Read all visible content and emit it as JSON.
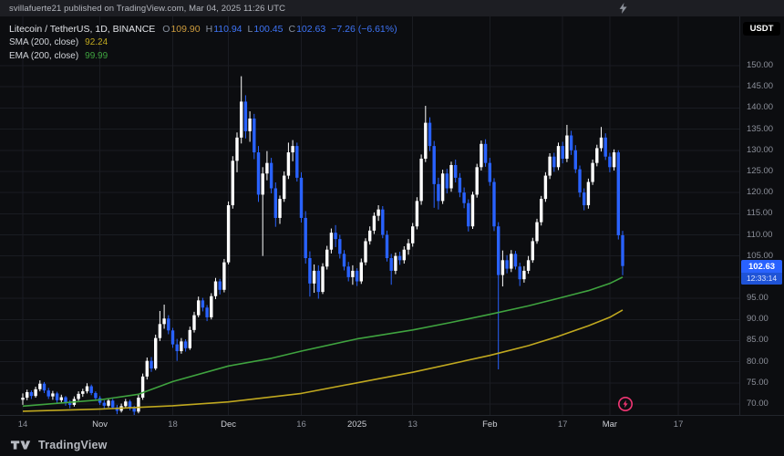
{
  "topbar": {
    "text": "svillafuerte21 published on TradingView.com, Mar 04, 2025 11:26 UTC"
  },
  "legend": {
    "symbol": "Litecoin / TetherUS, 1D, BINANCE",
    "ohlc": [
      {
        "label": "O",
        "value": "109.90",
        "color": "#cc9b3d"
      },
      {
        "label": "H",
        "value": "110.94",
        "color": "#3e74f5"
      },
      {
        "label": "L",
        "value": "100.45",
        "color": "#3e74f5"
      },
      {
        "label": "C",
        "value": "102.63",
        "color": "#3e74f5"
      }
    ],
    "change": "−7.26 (−6.61%)",
    "change_color": "#3e74f5",
    "indicators": [
      {
        "name": "SMA (200, close)",
        "value": "92.24",
        "color": "#c0a81f"
      },
      {
        "name": "EMA (200, close)",
        "value": "99.99",
        "color": "#3fa33f"
      }
    ]
  },
  "price_scale": {
    "currency_label": "USDT",
    "last_price": "102.63",
    "countdown": "12:33:14",
    "badge_color": "#2962ff"
  },
  "footer": {
    "logo_text": "TradingView"
  },
  "chart_data": {
    "type": "candlestick",
    "title": "Litecoin / TetherUS, 1D, BINANCE",
    "symbol": "LTC/USDT",
    "interval": "1D",
    "exchange": "BINANCE",
    "current_bar": {
      "open": 109.9,
      "high": 110.94,
      "low": 100.45,
      "close": 102.63,
      "change": -7.26,
      "change_pct": -6.61
    },
    "up_color": "#ffffff",
    "down_color": "#2962ff",
    "grid": true,
    "ylim": [
      66.5,
      155
    ],
    "y_ticks": [
      "150.00",
      "145.00",
      "140.00",
      "135.00",
      "130.00",
      "125.00",
      "120.00",
      "115.00",
      "110.00",
      "105.00",
      "100.00",
      "95.00",
      "90.00",
      "85.00",
      "80.00",
      "75.00",
      "70.00"
    ],
    "x_labels": [
      {
        "text": "14",
        "i": 0,
        "major": false
      },
      {
        "text": "Nov",
        "i": 18,
        "major": true
      },
      {
        "text": "18",
        "i": 35,
        "major": false
      },
      {
        "text": "Dec",
        "i": 48,
        "major": true
      },
      {
        "text": "16",
        "i": 65,
        "major": false
      },
      {
        "text": "2025",
        "i": 78,
        "major": true
      },
      {
        "text": "13",
        "i": 91,
        "major": false
      },
      {
        "text": "Feb",
        "i": 109,
        "major": true
      },
      {
        "text": "17",
        "i": 126,
        "major": false
      },
      {
        "text": "Mar",
        "i": 137,
        "major": true
      },
      {
        "text": "17",
        "i": 153,
        "major": false
      }
    ],
    "candles": [
      [
        71.0,
        72.5,
        69.8,
        71.5
      ],
      [
        71.5,
        73.4,
        70.9,
        72.8
      ],
      [
        72.8,
        73.2,
        71.2,
        71.9
      ],
      [
        71.9,
        74.1,
        71.5,
        73.5
      ],
      [
        73.5,
        75.6,
        73.0,
        74.8
      ],
      [
        74.8,
        75.2,
        72.6,
        73.2
      ],
      [
        73.2,
        73.8,
        71.2,
        71.8
      ],
      [
        71.8,
        73.1,
        71.0,
        72.5
      ],
      [
        72.5,
        72.9,
        70.3,
        70.9
      ],
      [
        70.9,
        72.2,
        70.4,
        71.6
      ],
      [
        71.6,
        71.9,
        69.6,
        70.2
      ],
      [
        70.2,
        70.9,
        69.0,
        69.8
      ],
      [
        69.8,
        71.8,
        69.4,
        71.2
      ],
      [
        71.2,
        73.0,
        70.8,
        72.4
      ],
      [
        72.4,
        73.6,
        71.7,
        73.0
      ],
      [
        73.0,
        74.9,
        72.5,
        74.2
      ],
      [
        74.2,
        74.6,
        72.1,
        72.6
      ],
      [
        72.6,
        73.0,
        70.9,
        71.4
      ],
      [
        71.4,
        71.9,
        69.8,
        70.3
      ],
      [
        70.3,
        70.9,
        69.0,
        69.6
      ],
      [
        69.6,
        71.4,
        69.2,
        70.8
      ],
      [
        70.8,
        71.2,
        68.8,
        69.2
      ],
      [
        69.2,
        69.8,
        67.6,
        68.4
      ],
      [
        68.4,
        70.1,
        68.0,
        69.5
      ],
      [
        69.5,
        71.2,
        69.1,
        70.6
      ],
      [
        70.6,
        71.0,
        68.5,
        69.0
      ],
      [
        69.0,
        69.6,
        66.4,
        68.2
      ],
      [
        68.2,
        72.3,
        67.8,
        71.5
      ],
      [
        71.5,
        77.2,
        71.0,
        76.5
      ],
      [
        76.5,
        81.0,
        75.8,
        80.2
      ],
      [
        80.2,
        81.1,
        77.6,
        78.4
      ],
      [
        78.4,
        86.4,
        78.0,
        85.6
      ],
      [
        85.6,
        92.0,
        84.9,
        88.9
      ],
      [
        88.9,
        93.5,
        87.8,
        90.2
      ],
      [
        90.2,
        91.0,
        86.5,
        87.4
      ],
      [
        87.4,
        88.0,
        83.3,
        84.1
      ],
      [
        84.1,
        85.4,
        80.2,
        82.5
      ],
      [
        82.5,
        85.6,
        81.9,
        84.8
      ],
      [
        84.8,
        85.3,
        82.4,
        83.2
      ],
      [
        83.2,
        88.3,
        82.8,
        87.5
      ],
      [
        87.5,
        91.8,
        86.9,
        91.0
      ],
      [
        91.0,
        95.4,
        90.5,
        94.5
      ],
      [
        94.5,
        95.1,
        91.9,
        92.8
      ],
      [
        92.8,
        93.4,
        89.6,
        90.5
      ],
      [
        90.5,
        96.2,
        90.0,
        95.5
      ],
      [
        95.5,
        99.8,
        94.8,
        99.0
      ],
      [
        99.0,
        99.6,
        95.9,
        97.0
      ],
      [
        97.0,
        104.3,
        96.4,
        103.5
      ],
      [
        103.5,
        117.9,
        103.0,
        117.0
      ],
      [
        117.0,
        128.6,
        116.2,
        127.5
      ],
      [
        127.5,
        134.2,
        124.8,
        133.0
      ],
      [
        133.0,
        147.5,
        131.6,
        141.5
      ],
      [
        141.5,
        143.0,
        132.8,
        134.5
      ],
      [
        134.5,
        139.2,
        132.0,
        137.5
      ],
      [
        137.5,
        138.6,
        127.9,
        129.5
      ],
      [
        129.5,
        131.0,
        117.8,
        119.5
      ],
      [
        119.5,
        126.0,
        105.0,
        124.5
      ],
      [
        124.5,
        129.8,
        122.9,
        127.0
      ],
      [
        127.0,
        128.2,
        119.8,
        121.0
      ],
      [
        121.0,
        122.4,
        111.9,
        114.0
      ],
      [
        114.0,
        119.3,
        112.6,
        118.5
      ],
      [
        118.5,
        125.0,
        117.8,
        124.0
      ],
      [
        124.0,
        131.8,
        123.2,
        129.5
      ],
      [
        129.5,
        132.4,
        127.4,
        131.0
      ],
      [
        131.0,
        131.8,
        122.6,
        123.5
      ],
      [
        123.5,
        124.8,
        112.9,
        114.0
      ],
      [
        114.0,
        115.6,
        103.2,
        104.5
      ],
      [
        104.5,
        106.1,
        95.4,
        98.5
      ],
      [
        98.5,
        103.0,
        96.3,
        101.5
      ],
      [
        101.5,
        102.8,
        94.9,
        96.5
      ],
      [
        96.5,
        103.3,
        96.0,
        102.5
      ],
      [
        102.5,
        107.4,
        101.8,
        106.5
      ],
      [
        106.5,
        111.5,
        105.6,
        110.5
      ],
      [
        110.5,
        112.3,
        107.1,
        109.0
      ],
      [
        109.0,
        110.0,
        104.4,
        105.5
      ],
      [
        105.5,
        106.4,
        101.6,
        102.5
      ],
      [
        102.5,
        103.6,
        99.0,
        100.0
      ],
      [
        100.0,
        102.8,
        98.2,
        101.5
      ],
      [
        101.5,
        102.1,
        97.9,
        99.0
      ],
      [
        99.0,
        104.4,
        98.4,
        103.5
      ],
      [
        103.5,
        109.2,
        102.8,
        108.5
      ],
      [
        108.5,
        112.0,
        107.7,
        111.0
      ],
      [
        111.0,
        115.3,
        110.2,
        114.5
      ],
      [
        114.5,
        117.0,
        113.3,
        116.0
      ],
      [
        116.0,
        116.8,
        109.2,
        110.0
      ],
      [
        110.0,
        111.0,
        103.7,
        104.5
      ],
      [
        104.5,
        105.5,
        98.2,
        101.5
      ],
      [
        101.5,
        105.8,
        100.7,
        105.0
      ],
      [
        105.0,
        106.0,
        102.9,
        104.0
      ],
      [
        104.0,
        107.3,
        103.2,
        106.5
      ],
      [
        106.5,
        109.0,
        105.3,
        108.0
      ],
      [
        108.0,
        112.8,
        107.2,
        112.0
      ],
      [
        112.0,
        118.9,
        111.3,
        118.0
      ],
      [
        118.0,
        129.0,
        117.1,
        128.0
      ],
      [
        128.0,
        140.5,
        127.2,
        136.5
      ],
      [
        136.5,
        137.8,
        129.8,
        131.0
      ],
      [
        131.0,
        132.2,
        116.4,
        122.0
      ],
      [
        122.0,
        123.5,
        116.0,
        118.0
      ],
      [
        118.0,
        125.4,
        117.3,
        124.5
      ],
      [
        124.5,
        125.6,
        119.8,
        121.0
      ],
      [
        121.0,
        127.3,
        120.2,
        126.5
      ],
      [
        126.5,
        127.8,
        122.4,
        123.5
      ],
      [
        123.5,
        124.6,
        118.9,
        120.0
      ],
      [
        120.0,
        121.2,
        116.3,
        117.5
      ],
      [
        117.5,
        118.4,
        110.8,
        112.0
      ],
      [
        112.0,
        120.2,
        111.4,
        119.5
      ],
      [
        119.5,
        126.8,
        118.8,
        126.0
      ],
      [
        126.0,
        132.3,
        125.2,
        131.5
      ],
      [
        131.5,
        132.6,
        126.1,
        127.0
      ],
      [
        127.0,
        128.2,
        121.6,
        122.5
      ],
      [
        122.5,
        123.4,
        110.9,
        112.0
      ],
      [
        112.0,
        113.0,
        78.2,
        100.5
      ],
      [
        100.5,
        106.3,
        97.8,
        104.0
      ],
      [
        104.0,
        105.2,
        100.9,
        102.0
      ],
      [
        102.0,
        106.4,
        101.2,
        105.5
      ],
      [
        105.5,
        106.2,
        101.8,
        102.5
      ],
      [
        102.5,
        103.4,
        97.9,
        99.5
      ],
      [
        99.5,
        102.6,
        98.7,
        101.5
      ],
      [
        101.5,
        105.0,
        100.8,
        104.0
      ],
      [
        104.0,
        109.3,
        103.4,
        108.5
      ],
      [
        108.5,
        113.8,
        107.9,
        113.0
      ],
      [
        113.0,
        119.2,
        112.2,
        118.5
      ],
      [
        118.5,
        124.8,
        117.8,
        124.0
      ],
      [
        124.0,
        129.3,
        123.2,
        128.5
      ],
      [
        128.5,
        129.4,
        124.9,
        126.0
      ],
      [
        126.0,
        131.8,
        125.3,
        131.0
      ],
      [
        131.0,
        132.0,
        126.9,
        128.0
      ],
      [
        128.0,
        136.0,
        127.2,
        133.5
      ],
      [
        133.5,
        134.6,
        128.9,
        130.0
      ],
      [
        130.0,
        131.2,
        124.6,
        125.5
      ],
      [
        125.5,
        126.4,
        118.9,
        120.0
      ],
      [
        120.0,
        121.0,
        115.8,
        117.0
      ],
      [
        117.0,
        123.3,
        116.2,
        122.5
      ],
      [
        122.5,
        127.8,
        121.8,
        127.0
      ],
      [
        127.0,
        131.3,
        126.2,
        130.5
      ],
      [
        130.5,
        135.5,
        129.7,
        133.0
      ],
      [
        133.0,
        134.0,
        127.7,
        128.5
      ],
      [
        128.5,
        129.4,
        124.8,
        126.0
      ],
      [
        126.0,
        130.2,
        125.2,
        129.5
      ],
      [
        129.5,
        130.0,
        108.9,
        109.9
      ],
      [
        109.9,
        110.94,
        100.45,
        102.63
      ]
    ],
    "sma": {
      "key": "sma",
      "name": "SMA (200, close)",
      "value": 92.24,
      "color": "#c0a81f",
      "points": [
        [
          0,
          68.3
        ],
        [
          18,
          68.8
        ],
        [
          35,
          69.6
        ],
        [
          48,
          70.5
        ],
        [
          65,
          72.5
        ],
        [
          78,
          75.0
        ],
        [
          91,
          77.5
        ],
        [
          109,
          81.5
        ],
        [
          118,
          83.8
        ],
        [
          125,
          86.0
        ],
        [
          132,
          88.5
        ],
        [
          137,
          90.5
        ],
        [
          140,
          92.24
        ]
      ]
    },
    "ema": {
      "key": "ema",
      "name": "EMA (200, close)",
      "value": 99.99,
      "color": "#3fa33f",
      "points": [
        [
          0,
          69.5
        ],
        [
          18,
          71.0
        ],
        [
          27,
          72.3
        ],
        [
          35,
          75.3
        ],
        [
          48,
          79.0
        ],
        [
          58,
          80.8
        ],
        [
          65,
          82.5
        ],
        [
          78,
          85.4
        ],
        [
          91,
          87.5
        ],
        [
          100,
          89.3
        ],
        [
          109,
          91.2
        ],
        [
          118,
          93.2
        ],
        [
          125,
          95.0
        ],
        [
          132,
          96.8
        ],
        [
          137,
          98.5
        ],
        [
          140,
          99.99
        ]
      ]
    }
  }
}
